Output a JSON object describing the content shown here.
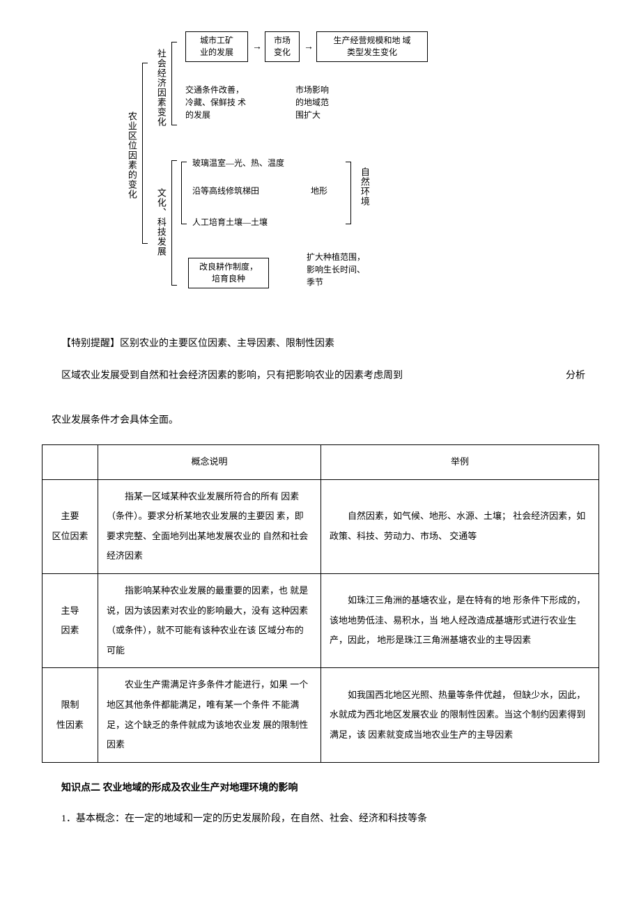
{
  "diagram": {
    "main_label": "农业区位因素的变化",
    "socio_label": "社会经济因素变化",
    "culture_label": "文化、科技发展",
    "env_label": "自然环境",
    "box_urban": "城市工矿\n业的发展",
    "box_market": "市场\n变化",
    "box_scale": "生产经营规模和地 域\n类型发生变化",
    "text_transport": "交通条件改善，\n冷藏、保鲜技 术\n的发展",
    "text_market_range": "市场影响\n的地域范\n围扩大",
    "text_greenhouse": "玻璃温室—光、热、温度",
    "text_terrace": "沿等高线修筑梯田",
    "text_terrain": "地形",
    "text_soil": "人工培育土壤—土壤",
    "box_breed": "改良耕作制度，\n培育良种",
    "text_expand": "扩大种植范围，\n影响生长时间、\n季节"
  },
  "reminder": {
    "label": "【特别提醒】",
    "text": "区别农业的主要区位因素、主导因素、限制性因素",
    "para1_a": "区域农业发展受到自然和社会经济因素的影响，只有把影响农业的因素考虑周到",
    "para1_b": "分析",
    "para2": "农业发展条件才会具体全面。"
  },
  "table": {
    "header_concept": "概念说明",
    "header_example": "举例",
    "rows": [
      {
        "label": "主要\n区位因素",
        "concept": "指某一区域某种农业发展所符合的所有 因素（条件）。要求分析某地农业发展的主要因 素，即要求完整、全面地列出某地发展农业的 自然和社会经济因素",
        "example": "自然因素，如气候、地形、水源、土壤； 社会经济因素，如政策、科技、劳动力、市场、 交通等"
      },
      {
        "label": "主导\n因素",
        "concept": "指影响某种农业发展的最重要的因素，也 就是说，因为该因素对农业的影响最大，没有 这种因素（或条件），就不可能有该种农业在该 区域分布的可能",
        "example": "如珠江三角洲的基塘农业，是在特有的地 形条件下形成的，该地地势低洼、易积水，当 地人经改造成基塘形式进行农业生产，因此， 地形是珠江三角洲基塘农业的主导因素"
      },
      {
        "label": "限制\n性因素",
        "concept": "农业生产需满足许多条件才能进行，如果 一个地区其他条件都能满足，唯有某一个条件 不能满足，这个缺乏的条件就成为该地农业发 展的限制性因素",
        "example": "如我国西北地区光照、热量等条件优越， 但缺少水，因此，水就成为西北地区发展农业 的限制性因素。当这个制约因素得到满足，该 因素就变成当地农业生产的主导因素"
      }
    ]
  },
  "section2": {
    "title": "知识点二 农业地域的形成及农业生产对地理环境的影响",
    "para1": "1．基本概念：在一定的地域和一定的历史发展阶段，在自然、社会、经济和科技等条"
  },
  "colors": {
    "text": "#000000",
    "background": "#ffffff",
    "border": "#000000"
  }
}
